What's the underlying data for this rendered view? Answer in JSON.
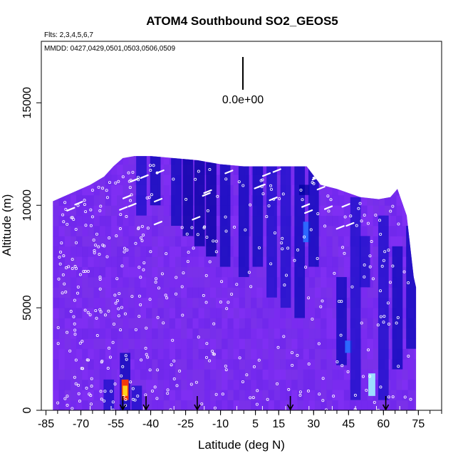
{
  "chart_data": {
    "type": "heatmap",
    "title": "ATOM4 Southbound SO2_GEOS5",
    "subtitle_flights": "Flts: 2,3,4,5,6,7",
    "subtitle_dates": "MMDD: 0427,0429,0501,0503,0506,0509",
    "xlabel": "Latitude (deg N)",
    "ylabel": "Altitude (m)",
    "xlim": [
      -87,
      85
    ],
    "ylim": [
      0,
      18000
    ],
    "x_ticks": [
      "-85",
      "-70",
      "-55",
      "-40",
      "-25",
      "-10",
      "5",
      "15",
      "30",
      "45",
      "60",
      "75"
    ],
    "y_ticks": [
      "0",
      "5000",
      "10000",
      "15000"
    ],
    "scale_label": "0.0e+00",
    "colors": {
      "background_field": "#7a2cf0",
      "low": "#7e2df2",
      "mid": "#1a10c8",
      "deep": "#0000a0",
      "high": "#9ee8ff",
      "peak": "#ffd21a",
      "extreme": "#ff3b00",
      "marker": "#ffffff",
      "frame": "#000000"
    },
    "envelope": [
      [
        -82,
        0,
        10200
      ],
      [
        -78,
        0,
        10400
      ],
      [
        -72,
        0,
        10700
      ],
      [
        -66,
        0,
        11000
      ],
      [
        -60,
        0,
        11400
      ],
      [
        -56,
        0,
        11900
      ],
      [
        -52,
        0,
        12300
      ],
      [
        -47,
        0,
        12400
      ],
      [
        -40,
        0,
        12400
      ],
      [
        -30,
        0,
        12300
      ],
      [
        -20,
        0,
        12200
      ],
      [
        -10,
        0,
        12000
      ],
      [
        0,
        0,
        11900
      ],
      [
        10,
        0,
        11900
      ],
      [
        20,
        0,
        11900
      ],
      [
        27,
        0,
        11900
      ],
      [
        33,
        0,
        11000
      ],
      [
        40,
        0,
        10800
      ],
      [
        50,
        0,
        10400
      ],
      [
        58,
        0,
        10300
      ],
      [
        63,
        0,
        10400
      ],
      [
        66,
        0,
        10800
      ],
      [
        70,
        0,
        9500
      ],
      [
        73,
        0,
        6500
      ],
      [
        74,
        0,
        6000
      ]
    ],
    "enhancements": [
      {
        "lat": -44,
        "alt_lo": 9500,
        "alt_hi": 12400,
        "level": 0.55
      },
      {
        "lat": -38,
        "alt_lo": 10000,
        "alt_hi": 12400,
        "level": 0.6
      },
      {
        "lat": -29,
        "alt_lo": 9000,
        "alt_hi": 12300,
        "level": 0.6
      },
      {
        "lat": -24,
        "alt_lo": 8500,
        "alt_hi": 12300,
        "level": 0.7
      },
      {
        "lat": -19,
        "alt_lo": 8000,
        "alt_hi": 12200,
        "level": 0.75
      },
      {
        "lat": -14,
        "alt_lo": 7500,
        "alt_hi": 12100,
        "level": 0.7
      },
      {
        "lat": -8,
        "alt_lo": 7000,
        "alt_hi": 12000,
        "level": 0.65
      },
      {
        "lat": 0,
        "alt_lo": 6500,
        "alt_hi": 11900,
        "level": 0.6
      },
      {
        "lat": 6,
        "alt_lo": 7000,
        "alt_hi": 11900,
        "level": 0.6
      },
      {
        "lat": 12,
        "alt_lo": 5500,
        "alt_hi": 11900,
        "level": 0.55
      },
      {
        "lat": 18,
        "alt_lo": 5000,
        "alt_hi": 11900,
        "level": 0.5
      },
      {
        "lat": 24,
        "alt_lo": 4500,
        "alt_hi": 11900,
        "level": 0.6
      },
      {
        "lat": 27,
        "alt_lo": 8200,
        "alt_hi": 9200,
        "level": 0.85
      },
      {
        "lat": 26,
        "alt_lo": 10500,
        "alt_hi": 11000,
        "level": 0.8
      },
      {
        "lat": 30,
        "alt_lo": 7000,
        "alt_hi": 11900,
        "level": 0.6
      },
      {
        "lat": 42,
        "alt_lo": 2200,
        "alt_hi": 6500,
        "level": 0.6
      },
      {
        "lat": 45,
        "alt_lo": 2800,
        "alt_hi": 3400,
        "level": 0.9
      },
      {
        "lat": 48,
        "alt_lo": 500,
        "alt_hi": 10400,
        "level": 0.55
      },
      {
        "lat": 52,
        "alt_lo": 6000,
        "alt_hi": 8500,
        "level": 0.55
      },
      {
        "lat": 55,
        "alt_lo": 700,
        "alt_hi": 1800,
        "level": 0.95
      },
      {
        "lat": 60,
        "alt_lo": 500,
        "alt_hi": 9500,
        "level": 0.55
      },
      {
        "lat": 66,
        "alt_lo": 2000,
        "alt_hi": 8000,
        "level": 0.6
      },
      {
        "lat": 72,
        "alt_lo": 3000,
        "alt_hi": 9000,
        "level": 0.65
      },
      {
        "lat": -51,
        "alt_lo": 0,
        "alt_hi": 2800,
        "level": 0.6
      },
      {
        "lat": -51,
        "alt_lo": 500,
        "alt_hi": 1500,
        "level": 1.0
      },
      {
        "lat": -58,
        "alt_lo": 0,
        "alt_hi": 1500,
        "level": 0.55
      },
      {
        "lat": -46,
        "alt_lo": 0,
        "alt_hi": 1200,
        "level": 0.5
      }
    ],
    "arrow_latitudes": [
      -52,
      -42,
      -20,
      20,
      61
    ],
    "ground_marks": [
      -66,
      -57,
      -43,
      -30,
      -17,
      -3,
      8,
      18,
      28,
      38,
      48,
      57,
      67
    ]
  }
}
